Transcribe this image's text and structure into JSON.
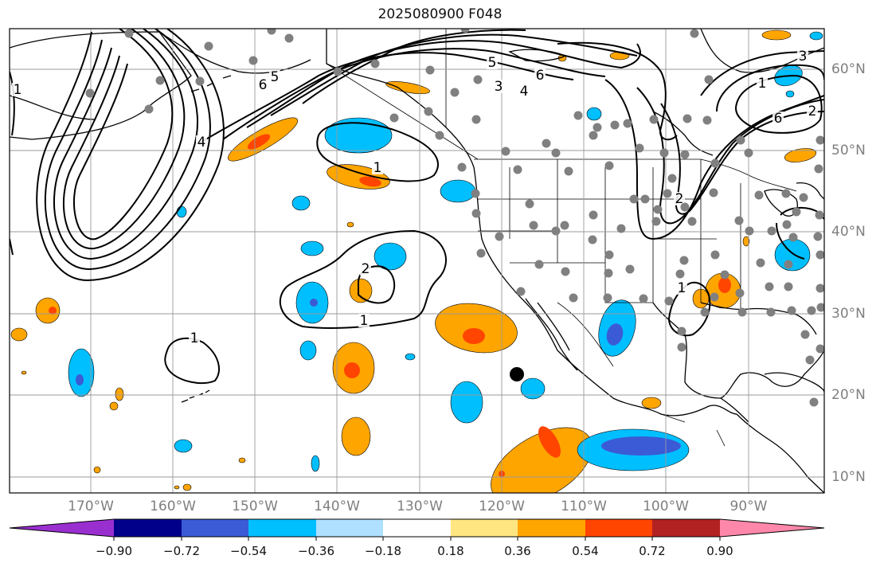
{
  "title": "2025080900 F048",
  "lon_labels": [
    "170°W",
    "160°W",
    "150°W",
    "140°W",
    "130°W",
    "120°W",
    "110°W",
    "100°W",
    "90°W"
  ],
  "lat_labels": [
    "60°N",
    "50°N",
    "40°N",
    "30°N",
    "20°N",
    "10°N"
  ],
  "contour_labels": [
    "1",
    "6",
    "5",
    "3",
    "4",
    "6",
    "5",
    "2",
    "1",
    "3",
    "6",
    "1",
    "2",
    "1",
    "1",
    "1",
    "4",
    "2"
  ],
  "colorbar": {
    "ticks": [
      "−0.90",
      "−0.72",
      "−0.54",
      "−0.36",
      "−0.18",
      "0.18",
      "0.36",
      "0.54",
      "0.72",
      "0.90"
    ],
    "colors": [
      "#9a2fd0",
      "#00008b",
      "#3b5bd6",
      "#00bfff",
      "#b0e0ff",
      "#ffffff",
      "#ffe680",
      "#ffa500",
      "#ff4500",
      "#b22222",
      "#ff88aa"
    ]
  },
  "palette": {
    "neg_light": "#00bfff",
    "neg_dark": "#3b5bd6",
    "pos_light": "#ffa500",
    "pos_dark": "#ff4500",
    "station": "#808080",
    "grid": "#9a9a9a"
  }
}
